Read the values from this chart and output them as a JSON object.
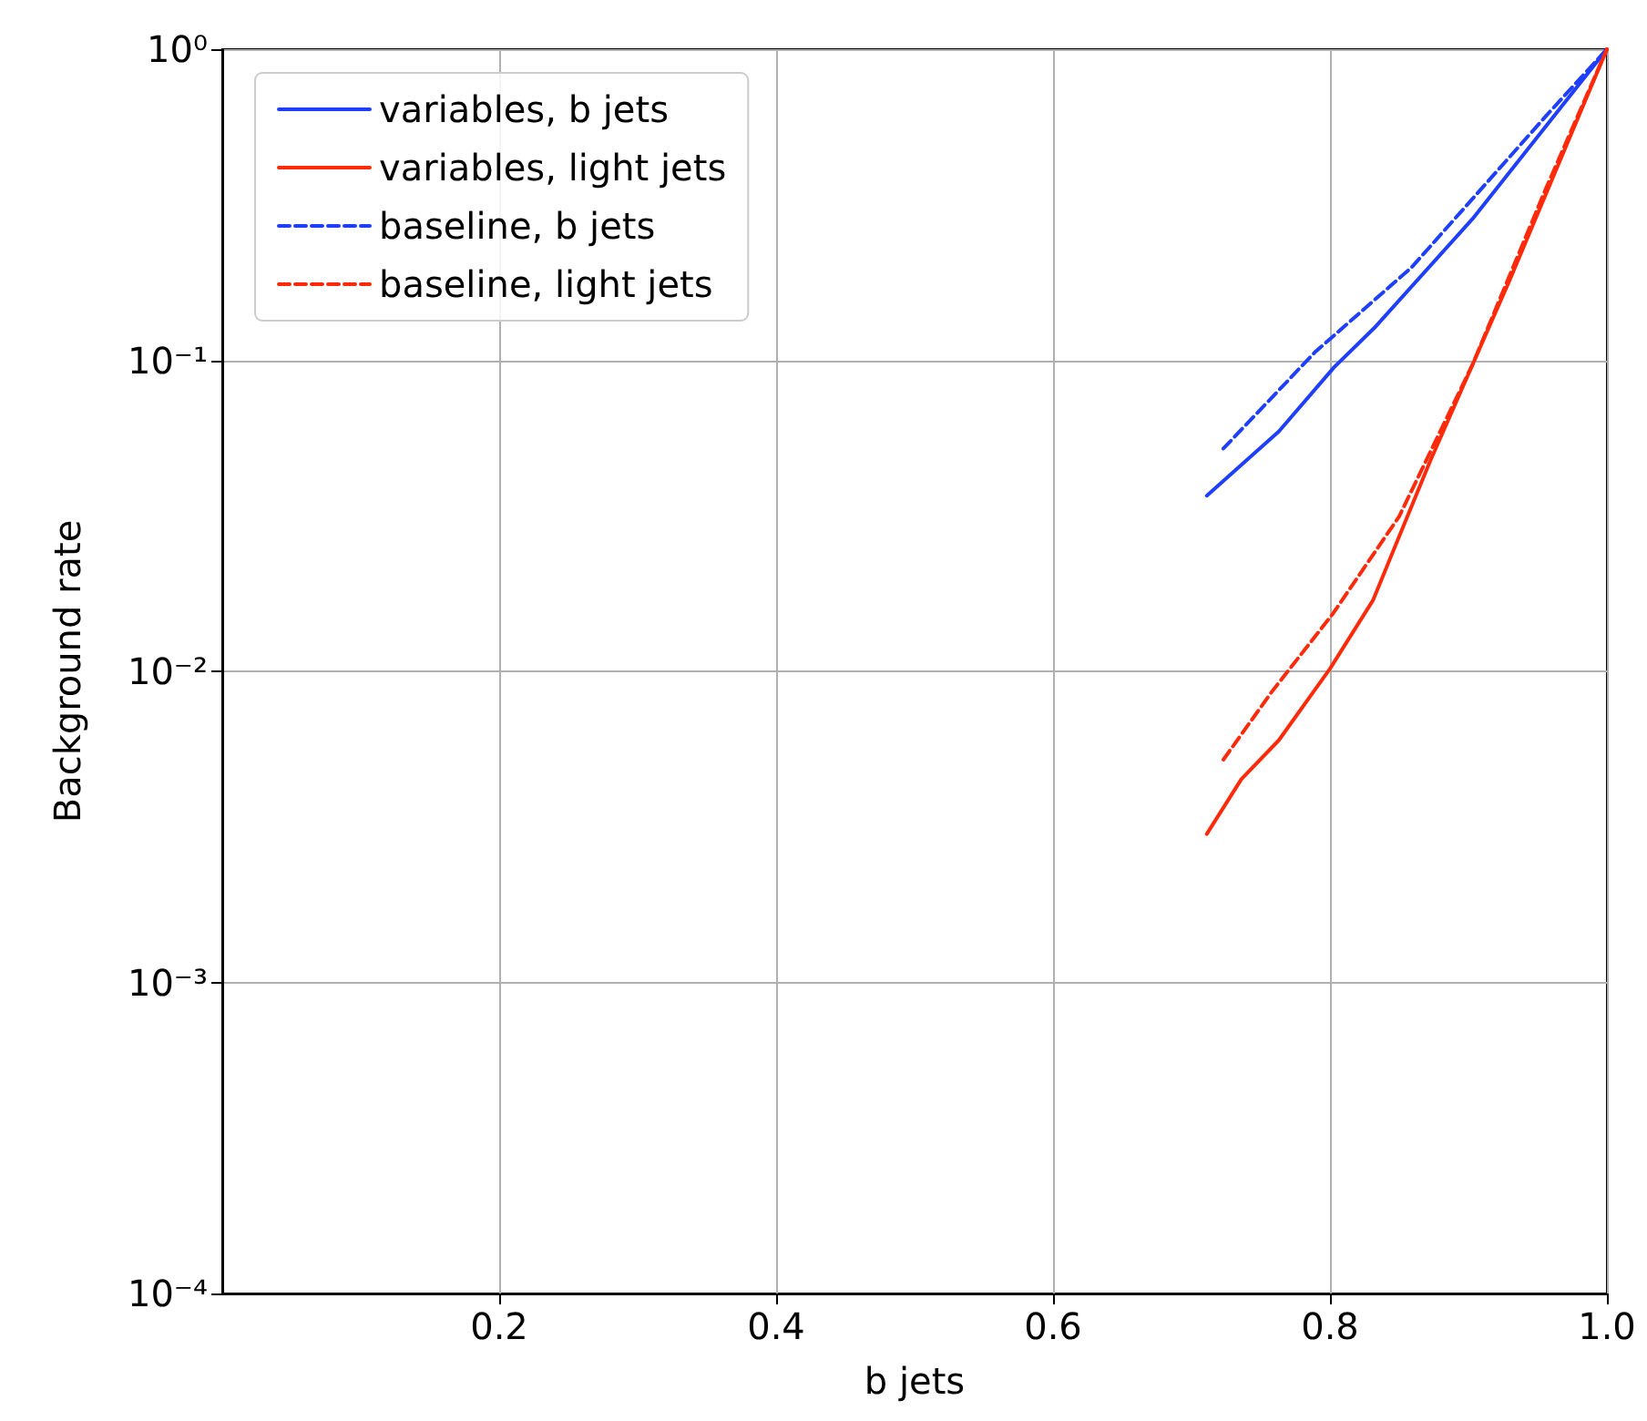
{
  "chart_data": {
    "type": "line",
    "xlabel": "b jets",
    "ylabel": "Background rate",
    "xlim": [
      0,
      1
    ],
    "xticks": [
      0.2,
      0.4,
      0.6,
      0.8,
      {
        "value": 1,
        "label": "1.0"
      }
    ],
    "ylim": [
      0.0001,
      1
    ],
    "yticks": [
      {
        "value": 0.0001,
        "label": "10⁻⁴"
      },
      {
        "value": 0.001,
        "label": "10⁻³"
      },
      {
        "value": 0.01,
        "label": "10⁻²"
      },
      {
        "value": 0.1,
        "label": "10⁻¹"
      },
      {
        "value": 1,
        "label": "10⁰"
      }
    ],
    "log": "y",
    "grid": true,
    "legend": "top left",
    "marker": "none",
    "series": [
      {
        "name": "variables, b jets",
        "color": "#1f3fff",
        "line_style": "solid",
        "x": [
          0.711,
          0.763,
          0.803,
          0.832,
          0.903,
          1.0
        ],
        "values": [
          0.0367,
          0.059,
          0.095,
          0.127,
          0.285,
          1
        ]
      },
      {
        "name": "variables, light jets",
        "color": "#ff2a0a",
        "line_style": "solid",
        "x": [
          0.711,
          0.736,
          0.763,
          0.8,
          0.831,
          0.872,
          0.93,
          1.0
        ],
        "values": [
          0.003,
          0.0045,
          0.006,
          0.0102,
          0.0169,
          0.047,
          0.182,
          1
        ]
      },
      {
        "name": "baseline, b jets",
        "color": "#1f3fff",
        "line_style": "dashed",
        "x": [
          0.723,
          0.789,
          0.859,
          0.956,
          1.0
        ],
        "values": [
          0.052,
          0.106,
          0.199,
          0.61,
          1
        ]
      },
      {
        "name": "baseline, light jets",
        "color": "#ff2a0a",
        "line_style": "dashed",
        "x": [
          0.723,
          0.758,
          0.802,
          0.85,
          0.903,
          0.956,
          1.0
        ],
        "values": [
          0.0052,
          0.0086,
          0.0153,
          0.0315,
          0.097,
          0.357,
          1
        ]
      }
    ]
  }
}
